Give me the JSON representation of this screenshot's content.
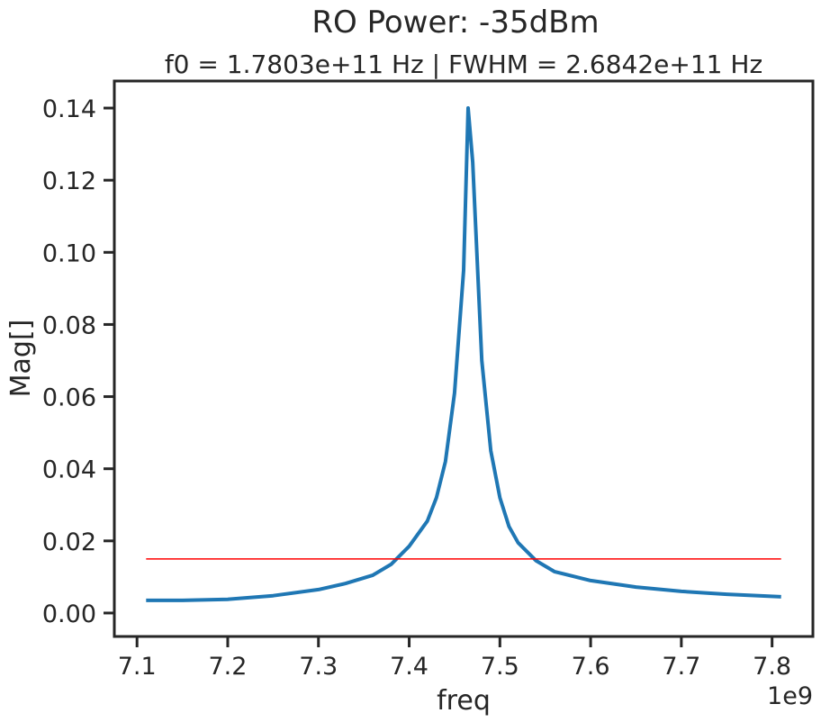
{
  "chart_data": {
    "type": "line",
    "title": "RO Power: -35dBm",
    "subtitle": "f0 = 1.7803e+11 Hz | FWHM = 2.6842e+11 Hz",
    "xlabel": "freq",
    "ylabel": "Mag[]",
    "x_offset_label": "1e9",
    "xlim": [
      7.075,
      7.845
    ],
    "ylim": [
      -0.0065,
      0.1475
    ],
    "x_ticks": [
      7.1,
      7.2,
      7.3,
      7.4,
      7.5,
      7.6,
      7.7,
      7.8
    ],
    "x_tick_labels": [
      "7.1",
      "7.2",
      "7.3",
      "7.4",
      "7.5",
      "7.6",
      "7.7",
      "7.8"
    ],
    "y_ticks": [
      0.0,
      0.02,
      0.04,
      0.06,
      0.08,
      0.1,
      0.12,
      0.14
    ],
    "y_tick_labels": [
      "0.00",
      "0.02",
      "0.04",
      "0.06",
      "0.08",
      "0.10",
      "0.12",
      "0.14"
    ],
    "grid": false,
    "series": [
      {
        "color": "#1f77b4",
        "x": [
          7.11,
          7.15,
          7.2,
          7.25,
          7.3,
          7.33,
          7.36,
          7.38,
          7.4,
          7.42,
          7.43,
          7.44,
          7.45,
          7.46,
          7.465,
          7.47,
          7.48,
          7.49,
          7.5,
          7.51,
          7.52,
          7.54,
          7.56,
          7.6,
          7.65,
          7.7,
          7.75,
          7.81
        ],
        "y": [
          0.0035,
          0.0035,
          0.0038,
          0.0048,
          0.0065,
          0.0082,
          0.0105,
          0.0135,
          0.0185,
          0.0255,
          0.032,
          0.042,
          0.061,
          0.095,
          0.14,
          0.125,
          0.07,
          0.045,
          0.032,
          0.024,
          0.0195,
          0.0145,
          0.0115,
          0.009,
          0.0072,
          0.006,
          0.0052,
          0.0045
        ]
      },
      {
        "color": "#ff0000",
        "x": [
          7.11,
          7.81
        ],
        "y": [
          0.015,
          0.015
        ]
      }
    ]
  }
}
